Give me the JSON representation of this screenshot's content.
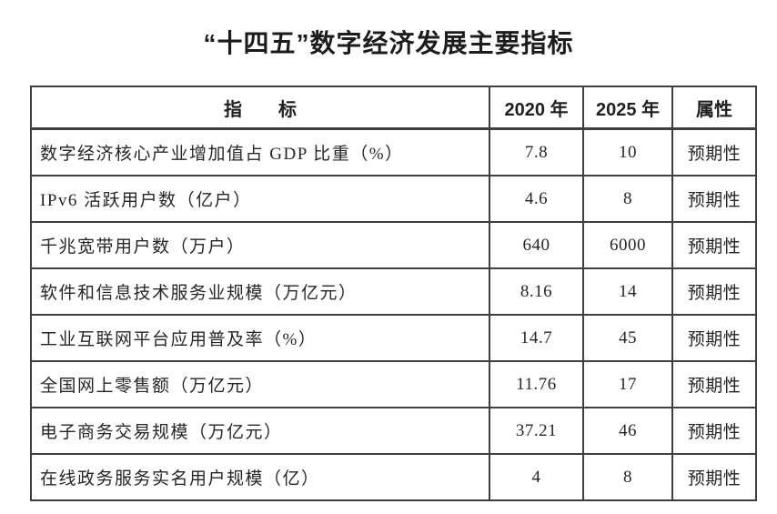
{
  "title": "“十四五”数字经济发展主要指标",
  "table": {
    "headers": [
      "指　　标",
      "2020 年",
      "2025 年",
      "属性"
    ],
    "rows": [
      {
        "indicator": "数字经济核心产业增加值占 GDP 比重（%）",
        "y2020": "7.8",
        "y2025": "10",
        "attribute": "预期性"
      },
      {
        "indicator": "IPv6 活跃用户数（亿户）",
        "y2020": "4.6",
        "y2025": "8",
        "attribute": "预期性"
      },
      {
        "indicator": "千兆宽带用户数（万户）",
        "y2020": "640",
        "y2025": "6000",
        "attribute": "预期性"
      },
      {
        "indicator": "软件和信息技术服务业规模（万亿元）",
        "y2020": "8.16",
        "y2025": "14",
        "attribute": "预期性"
      },
      {
        "indicator": "工业互联网平台应用普及率（%）",
        "y2020": "14.7",
        "y2025": "45",
        "attribute": "预期性"
      },
      {
        "indicator": "全国网上零售额（万亿元）",
        "y2020": "11.76",
        "y2025": "17",
        "attribute": "预期性"
      },
      {
        "indicator": "电子商务交易规模（万亿元）",
        "y2020": "37.21",
        "y2025": "46",
        "attribute": "预期性"
      },
      {
        "indicator": "在线政务服务实名用户规模（亿）",
        "y2020": "4",
        "y2025": "8",
        "attribute": "预期性"
      }
    ]
  },
  "colors": {
    "background": "#ffffff",
    "border": "#3f3f3f",
    "text": "#262626"
  }
}
